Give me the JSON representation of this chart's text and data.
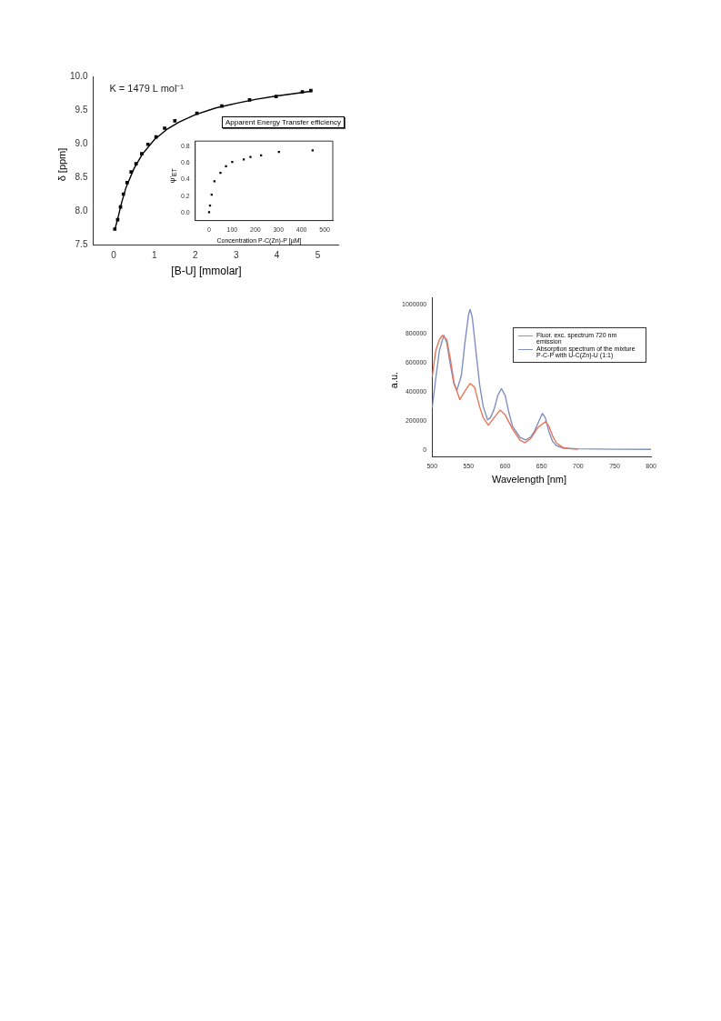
{
  "chart_data": [
    {
      "type": "scatter",
      "xlabel": "[B-U] [mmolar]",
      "ylabel": "δ [ppm]",
      "annotations": [
        "K = 1479 L mol⁻¹"
      ],
      "xlim": [
        -0.5,
        5.5
      ],
      "ylim": [
        7.5,
        10.0
      ],
      "xticks": [
        0,
        1,
        2,
        3,
        4,
        5
      ],
      "yticks": [
        {
          "value": 7.5,
          "label": "7.5"
        },
        {
          "value": 8.0,
          "label": "8.0"
        },
        {
          "value": 8.5,
          "label": "8.5"
        },
        {
          "value": 9.0,
          "label": "9.0"
        },
        {
          "value": 9.5,
          "label": "9.5"
        },
        {
          "value": 10.0,
          "label": "10.0"
        }
      ],
      "marker": "square",
      "series": [
        {
          "color": "#000000",
          "x": [
            0.03,
            0.1,
            0.17,
            0.24,
            0.33,
            0.43,
            0.55,
            0.69,
            0.84,
            1.04,
            1.25,
            1.5,
            2.04,
            2.65,
            3.33,
            3.98,
            4.62,
            4.83
          ],
          "values": [
            7.73,
            7.87,
            8.06,
            8.25,
            8.42,
            8.58,
            8.7,
            8.85,
            8.99,
            9.1,
            9.23,
            9.34,
            9.45,
            9.56,
            9.65,
            9.7,
            9.77,
            9.79
          ]
        },
        {
          "type": "line",
          "color": "#000000",
          "marker": "none",
          "x": [
            0.03,
            0.1,
            0.2,
            0.3,
            0.5,
            0.7,
            1.0,
            1.3,
            1.6,
            2.0,
            2.5,
            3.0,
            3.5,
            4.0,
            4.5,
            4.85
          ],
          "values": [
            7.72,
            7.88,
            8.13,
            8.34,
            8.63,
            8.84,
            9.06,
            9.21,
            9.32,
            9.43,
            9.53,
            9.6,
            9.66,
            9.71,
            9.75,
            9.78
          ]
        }
      ]
    },
    {
      "type": "scatter",
      "title": "Apparent Energy Transfer efficiency",
      "xlabel": "Concentration P-C(Zn)-P [µM]",
      "ylabel": "ψ'$_{ET}$",
      "xlim": [
        -60,
        535
      ],
      "ylim": [
        -0.09,
        0.86
      ],
      "xticks": [
        0,
        100,
        200,
        300,
        400,
        500
      ],
      "yticks": [
        {
          "value": 0,
          "label": "0.0"
        },
        {
          "value": 0.2,
          "label": "0.2"
        },
        {
          "value": 0.4,
          "label": "0.4"
        },
        {
          "value": 0.6,
          "label": "0.6"
        },
        {
          "value": 0.8,
          "label": "0.8"
        }
      ],
      "marker": "square",
      "series": [
        {
          "color": "#000000",
          "x": [
            0,
            4,
            11,
            23,
            49,
            73,
            100,
            150,
            179,
            225,
            302,
            448
          ],
          "values": [
            0.01,
            0.09,
            0.22,
            0.38,
            0.48,
            0.56,
            0.61,
            0.64,
            0.67,
            0.69,
            0.73,
            0.75
          ]
        }
      ]
    },
    {
      "type": "line",
      "xlabel": "Wavelength [nm]",
      "ylabel": "a.u.",
      "xlim": [
        500,
        800
      ],
      "ylim": [
        -50000,
        1050000
      ],
      "xticks": [
        500,
        550,
        600,
        650,
        700,
        750,
        800
      ],
      "yticks": [
        0,
        200000,
        400000,
        600000,
        800000,
        1000000
      ],
      "marker": "none",
      "legend": "top right",
      "series": [
        {
          "name": "Fluor. exc. spectrum 720 nm emission",
          "color": "#e8745a",
          "x": [
            500,
            505,
            510,
            514,
            520,
            525,
            530,
            538,
            545,
            552,
            558,
            565,
            570,
            577,
            585,
            593,
            600,
            610,
            620,
            627,
            635,
            645,
            655,
            660,
            665,
            670,
            680,
            690,
            700
          ],
          "values": [
            500000,
            683000,
            760000,
            788000,
            760000,
            625000,
            462000,
            346000,
            404000,
            456000,
            433000,
            298000,
            221000,
            169000,
            221000,
            273000,
            240000,
            144000,
            67000,
            48000,
            77000,
            154000,
            192000,
            163000,
            96000,
            48000,
            13000,
            6000,
            3000
          ]
        },
        {
          "name": "Absorption spectrum of the mixture P-C-P with U-C(Zn)-U (1:1)",
          "color": "#7f8fc0",
          "x": [
            500,
            505,
            510,
            516,
            520,
            525,
            530,
            534,
            540,
            545,
            550,
            552,
            555,
            560,
            565,
            570,
            576,
            580,
            585,
            590,
            595,
            600,
            605,
            610,
            620,
            628,
            635,
            640,
            645,
            651,
            655,
            660,
            665,
            670,
            680,
            700,
            750,
            800
          ],
          "values": [
            288000,
            490000,
            683000,
            790000,
            740000,
            587000,
            452000,
            410000,
            510000,
            740000,
            933000,
            967000,
            913000,
            683000,
            452000,
            298000,
            206000,
            221000,
            279000,
            375000,
            421000,
            375000,
            260000,
            163000,
            87000,
            67000,
            87000,
            125000,
            183000,
            250000,
            221000,
            125000,
            58000,
            29000,
            10000,
            6000,
            3000,
            2000
          ]
        }
      ]
    }
  ]
}
